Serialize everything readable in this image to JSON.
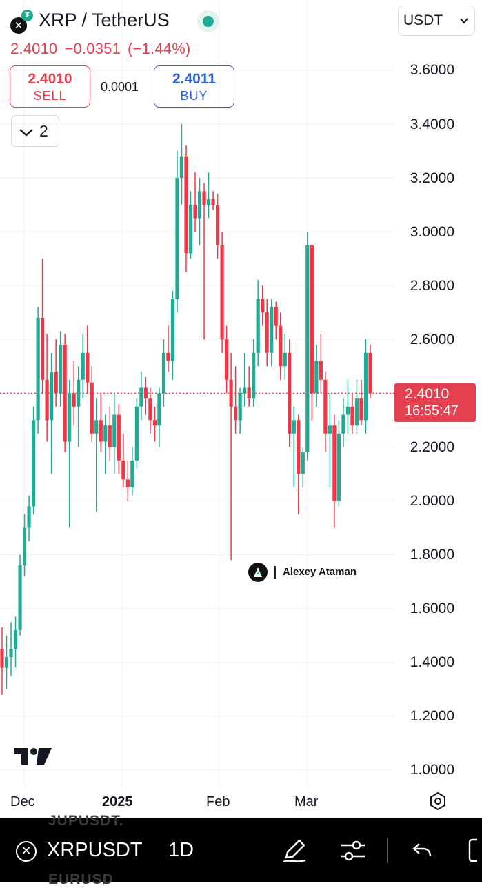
{
  "header": {
    "symbol_title": "XRP / TetherUS",
    "last_price": "2.4010",
    "change_abs": "−0.0351",
    "change_pct": "(−1.44%)",
    "currency": "USDT",
    "sell_price": "2.4010",
    "sell_label": "SELL",
    "spread": "0.0001",
    "buy_price": "2.4011",
    "buy_label": "BUY",
    "indicators_count": "2"
  },
  "price_tag": {
    "price": "2.4010",
    "countdown": "16:55:47"
  },
  "watermark": {
    "text": "Alexey Ataman"
  },
  "y_axis": [
    "3.6000",
    "3.4000",
    "3.2000",
    "3.0000",
    "2.8000",
    "2.6000",
    "2.2000",
    "2.0000",
    "1.8000",
    "1.6000",
    "1.4000",
    "1.2000",
    "1.0000"
  ],
  "x_axis": [
    "Dec",
    "2025",
    "Feb",
    "Mar"
  ],
  "bottom_bar": {
    "symbol": "XRPUSDT",
    "timeframe": "1D",
    "ghost_top": "JUPUSDT.",
    "ghost_bottom": "EURUSD"
  },
  "colors": {
    "up": "#22ab94",
    "down": "#f23645",
    "accent_red": "#e5404f",
    "accent_blue": "#2e62d9"
  },
  "icons": [
    "close-icon",
    "status-dot",
    "chevron-down-icon",
    "draw-icon",
    "settings-sliders-icon",
    "undo-icon",
    "fullscreen-icon",
    "chart-settings-icon",
    "tradingview-logo"
  ],
  "chart_data": {
    "type": "candlestick",
    "title": "XRP / TetherUS",
    "timeframe": "1D",
    "ylim": [
      1.0,
      3.7
    ],
    "y_ticks": [
      1.0,
      1.2,
      1.4,
      1.6,
      1.8,
      2.0,
      2.2,
      2.4,
      2.6,
      2.8,
      3.0,
      3.2,
      3.4,
      3.6
    ],
    "x_ticks": [
      "Dec",
      "2025",
      "Feb",
      "Mar"
    ],
    "current_price": 2.401,
    "candles": [
      [
        1.45,
        1.53,
        1.28,
        1.38
      ],
      [
        1.38,
        1.5,
        1.3,
        1.42
      ],
      [
        1.42,
        1.55,
        1.35,
        1.45
      ],
      [
        1.45,
        1.57,
        1.38,
        1.52
      ],
      [
        1.52,
        1.8,
        1.5,
        1.76
      ],
      [
        1.76,
        1.95,
        1.72,
        1.9
      ],
      [
        1.9,
        2.02,
        1.85,
        1.98
      ],
      [
        1.98,
        2.35,
        1.95,
        2.3
      ],
      [
        2.3,
        2.72,
        2.25,
        2.68
      ],
      [
        2.68,
        2.9,
        2.4,
        2.45
      ],
      [
        2.45,
        2.62,
        2.22,
        2.3
      ],
      [
        2.3,
        2.55,
        2.1,
        2.48
      ],
      [
        2.48,
        2.6,
        2.35,
        2.4
      ],
      [
        2.4,
        2.63,
        2.35,
        2.58
      ],
      [
        2.58,
        2.62,
        2.18,
        2.22
      ],
      [
        2.22,
        2.45,
        1.9,
        2.4
      ],
      [
        2.4,
        2.52,
        2.28,
        2.35
      ],
      [
        2.35,
        2.5,
        2.2,
        2.45
      ],
      [
        2.45,
        2.62,
        2.38,
        2.55
      ],
      [
        2.55,
        2.65,
        2.4,
        2.44
      ],
      [
        2.44,
        2.5,
        2.22,
        2.25
      ],
      [
        2.25,
        2.38,
        1.96,
        2.3
      ],
      [
        2.3,
        2.4,
        2.18,
        2.22
      ],
      [
        2.22,
        2.32,
        2.1,
        2.28
      ],
      [
        2.28,
        2.35,
        2.15,
        2.2
      ],
      [
        2.2,
        2.4,
        2.1,
        2.32
      ],
      [
        2.32,
        2.36,
        2.1,
        2.15
      ],
      [
        2.15,
        2.25,
        2.05,
        2.08
      ],
      [
        2.08,
        2.15,
        2.0,
        2.05
      ],
      [
        2.05,
        2.2,
        2.02,
        2.15
      ],
      [
        2.15,
        2.38,
        2.12,
        2.35
      ],
      [
        2.35,
        2.48,
        2.3,
        2.42
      ],
      [
        2.42,
        2.46,
        2.32,
        2.38
      ],
      [
        2.38,
        2.42,
        2.25,
        2.3
      ],
      [
        2.3,
        2.35,
        2.22,
        2.28
      ],
      [
        2.28,
        2.42,
        2.2,
        2.4
      ],
      [
        2.4,
        2.6,
        2.35,
        2.55
      ],
      [
        2.55,
        2.65,
        2.48,
        2.52
      ],
      [
        2.52,
        2.78,
        2.45,
        2.75
      ],
      [
        2.75,
        3.3,
        2.7,
        3.2
      ],
      [
        3.2,
        3.4,
        3.1,
        3.28
      ],
      [
        3.28,
        3.32,
        2.85,
        2.92
      ],
      [
        2.92,
        3.15,
        2.9,
        3.1
      ],
      [
        3.1,
        3.22,
        3.0,
        3.05
      ],
      [
        3.05,
        3.2,
        2.95,
        3.15
      ],
      [
        3.15,
        3.18,
        2.6,
        3.1
      ],
      [
        3.1,
        3.22,
        3.05,
        3.12
      ],
      [
        3.12,
        3.15,
        3.08,
        3.1
      ],
      [
        3.1,
        3.14,
        2.9,
        2.95
      ],
      [
        2.95,
        3.0,
        2.55,
        2.6
      ],
      [
        2.6,
        2.65,
        2.4,
        2.45
      ],
      [
        2.45,
        2.55,
        1.78,
        2.35
      ],
      [
        2.35,
        2.5,
        2.25,
        2.3
      ],
      [
        2.3,
        2.42,
        2.25,
        2.4
      ],
      [
        2.4,
        2.55,
        2.35,
        2.42
      ],
      [
        2.42,
        2.5,
        2.35,
        2.38
      ],
      [
        2.38,
        2.6,
        2.35,
        2.55
      ],
      [
        2.55,
        2.82,
        2.5,
        2.75
      ],
      [
        2.75,
        2.8,
        2.65,
        2.7
      ],
      [
        2.7,
        2.75,
        2.5,
        2.55
      ],
      [
        2.55,
        2.75,
        2.5,
        2.72
      ],
      [
        2.72,
        2.74,
        2.6,
        2.65
      ],
      [
        2.65,
        2.7,
        2.45,
        2.5
      ],
      [
        2.5,
        2.62,
        2.45,
        2.55
      ],
      [
        2.55,
        2.6,
        2.2,
        2.25
      ],
      [
        2.25,
        2.35,
        2.05,
        2.3
      ],
      [
        2.3,
        2.32,
        1.95,
        2.1
      ],
      [
        2.1,
        2.2,
        2.05,
        2.18
      ],
      [
        2.18,
        3.0,
        2.15,
        2.95
      ],
      [
        2.95,
        2.95,
        2.3,
        2.4
      ],
      [
        2.4,
        2.58,
        2.35,
        2.52
      ],
      [
        2.52,
        2.62,
        2.4,
        2.45
      ],
      [
        2.45,
        2.48,
        2.18,
        2.25
      ],
      [
        2.25,
        2.4,
        2.05,
        2.28
      ],
      [
        2.28,
        2.32,
        1.9,
        2.0
      ],
      [
        2.0,
        2.3,
        1.98,
        2.25
      ],
      [
        2.25,
        2.38,
        2.2,
        2.32
      ],
      [
        2.32,
        2.45,
        2.25,
        2.35
      ],
      [
        2.35,
        2.4,
        2.25,
        2.28
      ],
      [
        2.28,
        2.45,
        2.25,
        2.38
      ],
      [
        2.38,
        2.45,
        2.28,
        2.3
      ],
      [
        2.3,
        2.6,
        2.25,
        2.55
      ],
      [
        2.55,
        2.58,
        2.38,
        2.4
      ]
    ]
  }
}
